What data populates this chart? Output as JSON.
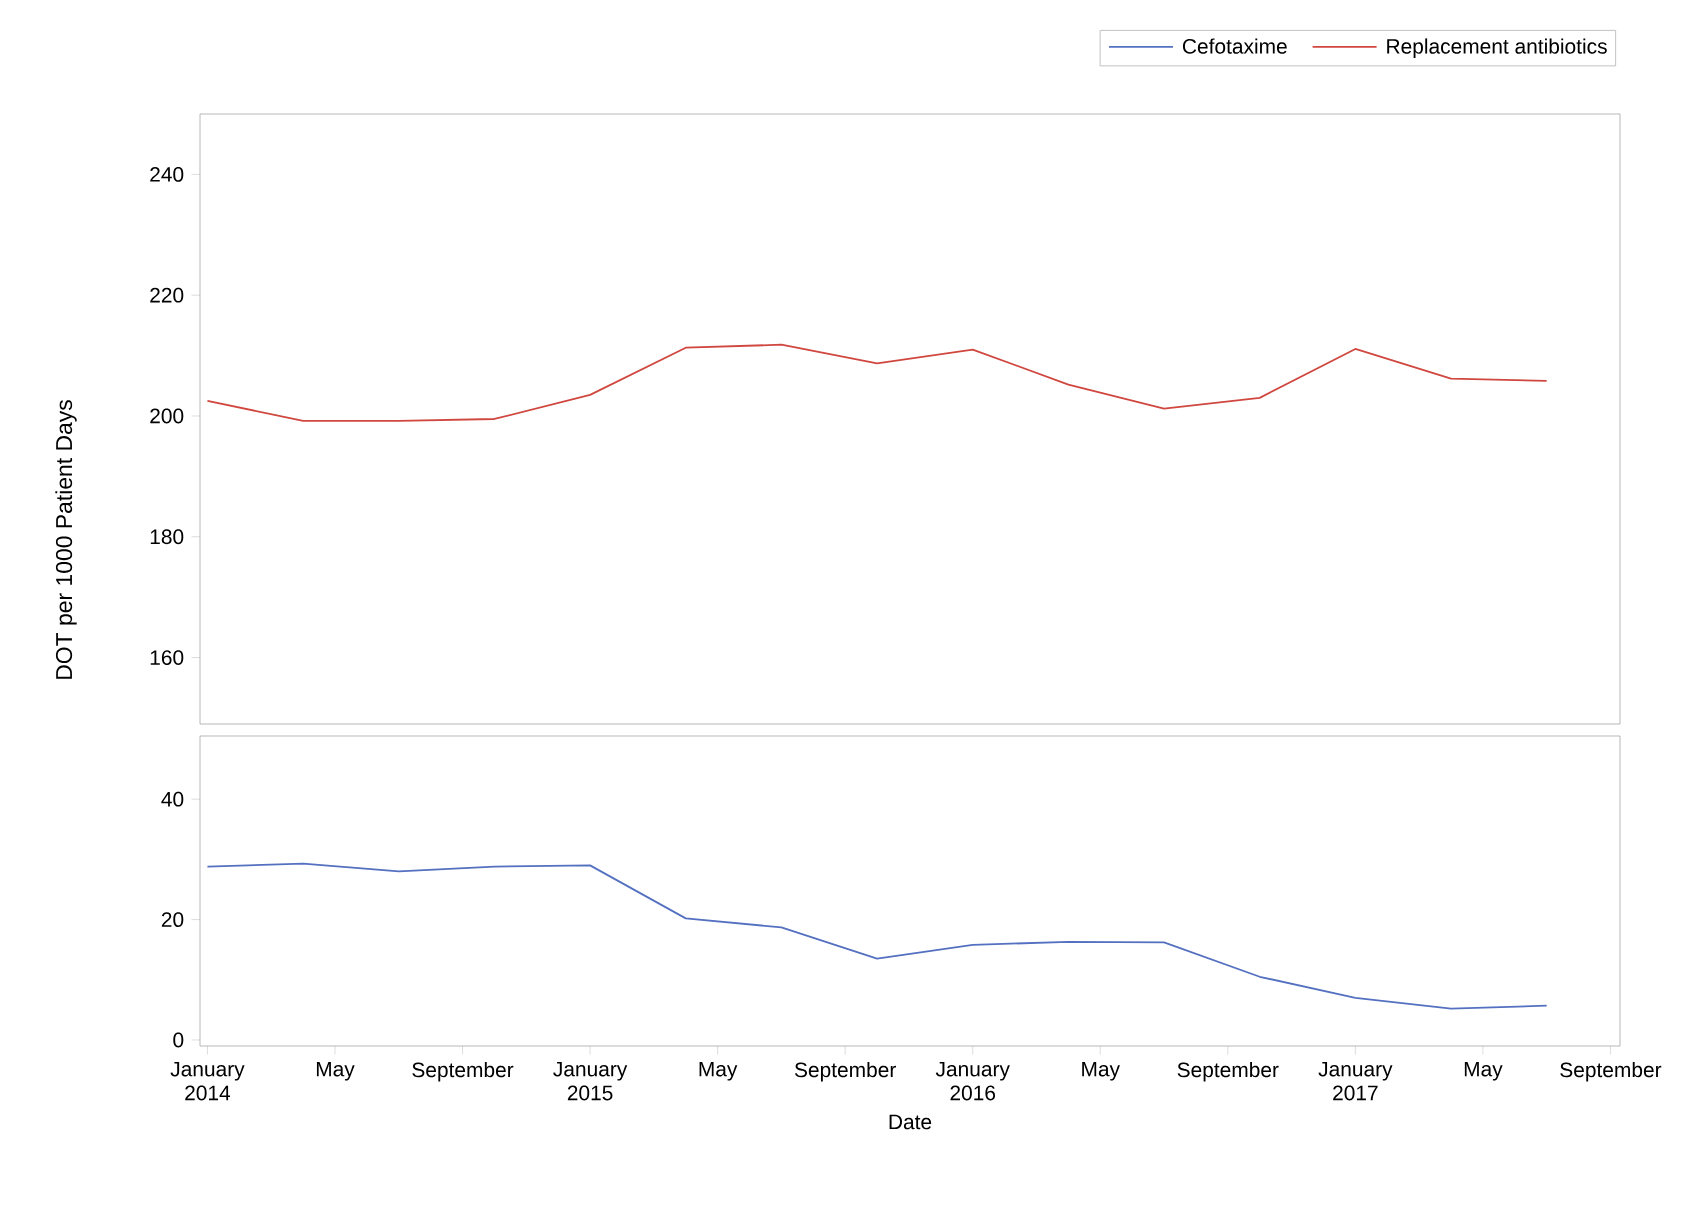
{
  "chart_data": [
    {
      "type": "line",
      "ylabel": "DOT per 1000 Patient Days",
      "x": [
        "2014-01",
        "2014-04",
        "2014-07",
        "2014-10",
        "2015-01",
        "2015-04",
        "2015-07",
        "2015-10",
        "2016-01",
        "2016-04",
        "2016-07",
        "2016-10",
        "2017-01",
        "2017-04",
        "2017-07"
      ],
      "series": [
        {
          "name": "Replacement antibiotics",
          "color": "#d0473f",
          "values": [
            202.5,
            199.2,
            199.2,
            199.5,
            203.5,
            211.3,
            211.8,
            208.7,
            211,
            205.2,
            201.2,
            203,
            211.1,
            206.2,
            205.8
          ]
        }
      ],
      "xlim": [
        "2013-12-24",
        "2017-09-10"
      ],
      "ylim": [
        149,
        250
      ],
      "yticks": [
        160,
        180,
        200,
        220,
        240
      ],
      "tick_labels": "y",
      "legend": "top right",
      "grid": false,
      "marker": "none"
    },
    {
      "type": "line",
      "xlabel": "Date",
      "x": [
        "2014-01",
        "2014-04",
        "2014-07",
        "2014-10",
        "2015-01",
        "2015-04",
        "2015-07",
        "2015-10",
        "2016-01",
        "2016-04",
        "2016-07",
        "2016-10",
        "2017-01",
        "2017-04",
        "2017-07"
      ],
      "series": [
        {
          "name": "Cefotaxime",
          "color": "#5470c0",
          "values": [
            28.8,
            29.3,
            28,
            28.8,
            29,
            20.2,
            18.7,
            13.5,
            15.8,
            16.3,
            16.2,
            10.5,
            7,
            5.2,
            5.7
          ]
        }
      ],
      "xlim": [
        "2013-12-24",
        "2017-09-10"
      ],
      "ylim": [
        -1,
        50.5
      ],
      "yticks": [
        0,
        20,
        40
      ],
      "xticks": [
        {
          "value": "2014-01",
          "label": "January 2014"
        },
        {
          "value": "2014-05",
          "label": "May"
        },
        {
          "value": "2014-09",
          "label": "September"
        },
        {
          "value": "2015-01",
          "label": "January 2015"
        },
        {
          "value": "2015-05",
          "label": "May"
        },
        {
          "value": "2015-09",
          "label": "September"
        },
        {
          "value": "2016-01",
          "label": "January 2016"
        },
        {
          "value": "2016-05",
          "label": "May"
        },
        {
          "value": "2016-09",
          "label": "September"
        },
        {
          "value": "2017-01",
          "label": "January 2017"
        },
        {
          "value": "2017-05",
          "label": "May"
        },
        {
          "value": "2017-09",
          "label": "September"
        }
      ],
      "legend": "top right",
      "grid": false,
      "marker": "none"
    }
  ]
}
